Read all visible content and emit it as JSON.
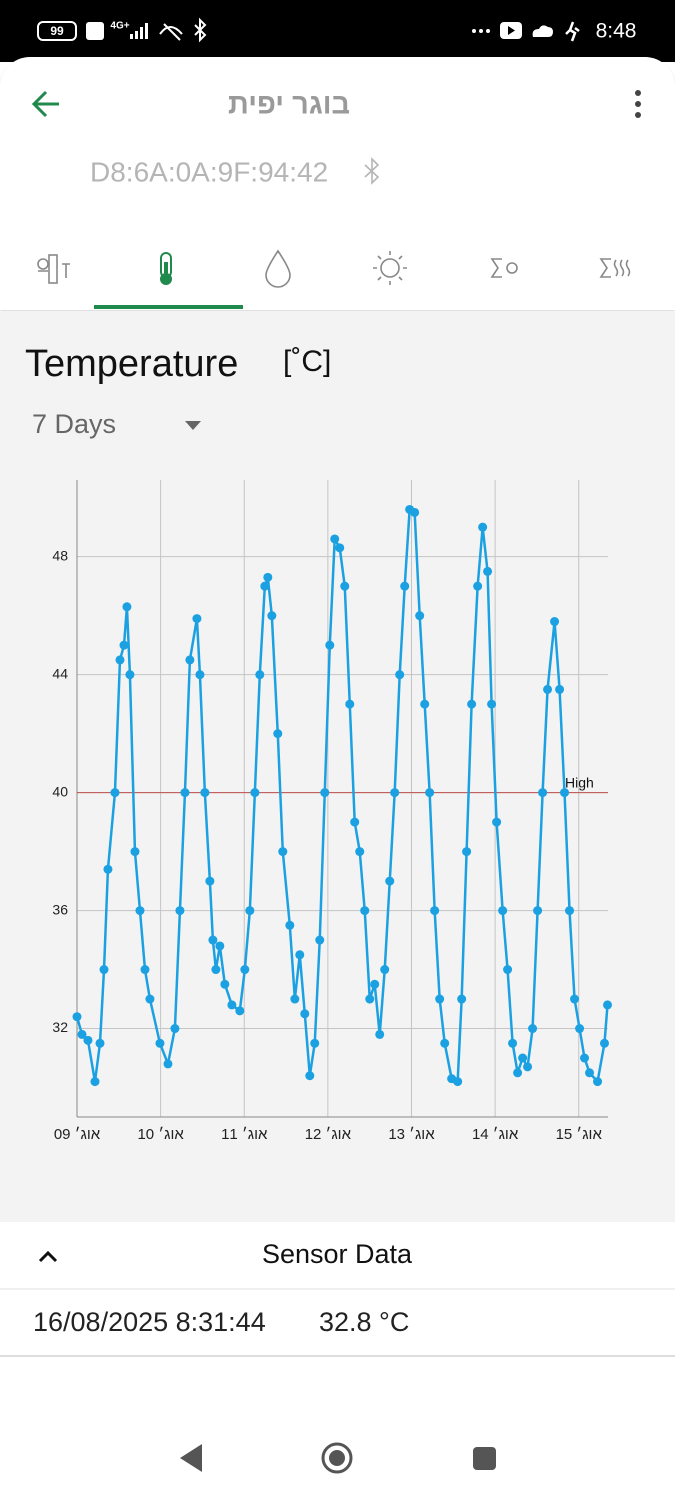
{
  "status_bar": {
    "battery": "99",
    "network": "4G+",
    "time": "8:48"
  },
  "app_bar": {
    "title": "בוגר יפית",
    "device_address": "D8:6A:0A:9F:94:42"
  },
  "chart_data": {
    "type": "line",
    "title": "Temperature",
    "unit": "[˚C]",
    "range_selector": "7 Days",
    "x": [
      9.0,
      9.06,
      9.131,
      9.215,
      9.275,
      9.323,
      9.37,
      9.454,
      9.514,
      9.562,
      9.597,
      9.633,
      9.693,
      9.753,
      9.813,
      9.872,
      9.992,
      10.088,
      10.171,
      10.231,
      10.291,
      10.35,
      10.434,
      10.47,
      10.529,
      10.589,
      10.625,
      10.661,
      10.708,
      10.768,
      10.852,
      10.947,
      11.007,
      11.067,
      11.127,
      11.186,
      11.246,
      11.282,
      11.33,
      11.401,
      11.461,
      11.545,
      11.605,
      11.664,
      11.724,
      11.784,
      11.843,
      11.903,
      11.963,
      12.023,
      12.082,
      12.142,
      12.202,
      12.262,
      12.321,
      12.381,
      12.441,
      12.501,
      12.56,
      12.62,
      12.68,
      12.74,
      12.799,
      12.859,
      12.919,
      12.978,
      13.038,
      13.098,
      13.158,
      13.217,
      13.277,
      13.337,
      13.397,
      13.48,
      13.552,
      13.6,
      13.659,
      13.719,
      13.791,
      13.851,
      13.91,
      13.958,
      14.018,
      14.09,
      14.149,
      14.209,
      14.269,
      14.329,
      14.388,
      14.448,
      14.508,
      14.568,
      14.627,
      14.711,
      14.771,
      14.83,
      14.89,
      14.95,
      15.01,
      15.069,
      15.129,
      15.225,
      15.308,
      15.344
    ],
    "series": [
      {
        "color": "#1ba1e2",
        "values": [
          32.4,
          31.8,
          31.6,
          30.2,
          31.5,
          34,
          37.4,
          40,
          44.5,
          45,
          46.3,
          44,
          38,
          36,
          34,
          33,
          31.5,
          30.8,
          32,
          36,
          40,
          44.5,
          45.9,
          44,
          40,
          37,
          35,
          34,
          34.8,
          33.5,
          32.8,
          32.6,
          34,
          36,
          40,
          44,
          47,
          47.3,
          46,
          42,
          38,
          35.5,
          33,
          34.5,
          32.5,
          30.4,
          31.5,
          35,
          40,
          45,
          48.6,
          48.3,
          47,
          43,
          39,
          38,
          36,
          33,
          33.5,
          31.8,
          34,
          37,
          40,
          44,
          47,
          49.6,
          49.5,
          46,
          43,
          40,
          36,
          33,
          31.5,
          30.3,
          30.2,
          33,
          38,
          43,
          47,
          49,
          47.5,
          43,
          39,
          36,
          34,
          31.5,
          30.5,
          31,
          30.7,
          32,
          36,
          40,
          43.5,
          45.8,
          43.5,
          40,
          36,
          33,
          32,
          31,
          30.5,
          30.2,
          31.5,
          32.8
        ]
      }
    ],
    "xlim": [
      9,
      15.35
    ],
    "xticks": [
      {
        "value": 9,
        "label": "אוג׳ 09"
      },
      {
        "value": 10,
        "label": "אוג׳ 10"
      },
      {
        "value": 11,
        "label": "אוג׳ 11"
      },
      {
        "value": 12,
        "label": "אוג׳ 12"
      },
      {
        "value": 13,
        "label": "אוג׳ 13"
      },
      {
        "value": 14,
        "label": "אוג׳ 14"
      },
      {
        "value": 15,
        "label": "אוג׳ 15"
      }
    ],
    "ylim": [
      29,
      50.6
    ],
    "yticks": [
      32,
      36,
      40,
      44,
      48
    ],
    "grid": true,
    "threshold": {
      "value": 40,
      "label": "High",
      "color": "#c0504d"
    }
  },
  "sensor_panel": {
    "title": "Sensor Data",
    "timestamp": "16/08/2025 8:31:44",
    "reading": "32.8 °C"
  }
}
